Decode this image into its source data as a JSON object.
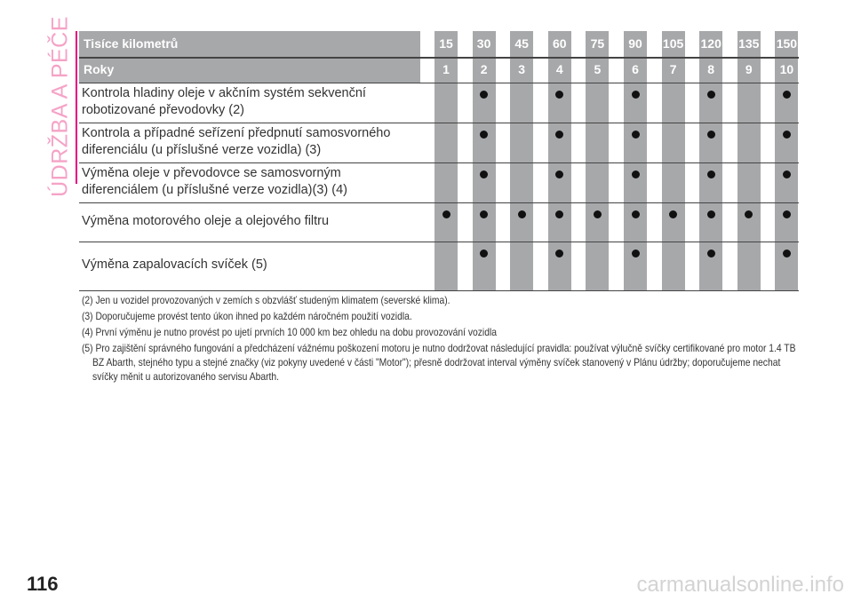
{
  "section_title": "ÚDRŽBA A PÉČE",
  "page_number": "116",
  "watermark": "carmanualsonline.info",
  "colors": {
    "accent_pink": "#e8007f",
    "header_gray": "#a7a8aa"
  },
  "table": {
    "header_km_label": "Tisíce kilometrů",
    "header_years_label": "Roky",
    "km": [
      "15",
      "30",
      "45",
      "60",
      "75",
      "90",
      "105",
      "120",
      "135",
      "150"
    ],
    "years": [
      "1",
      "2",
      "3",
      "4",
      "5",
      "6",
      "7",
      "8",
      "9",
      "10"
    ],
    "rows": [
      {
        "label": "Kontrola hladiny oleje v akčním systém sekvenční robotizované převodovky (2)",
        "marks": [
          false,
          true,
          false,
          true,
          false,
          true,
          false,
          true,
          false,
          true
        ]
      },
      {
        "label": "Kontrola a případné seřízení předpnutí samosvorného diferenciálu (u příslušné verze vozidla) (3)",
        "marks": [
          false,
          true,
          false,
          true,
          false,
          true,
          false,
          true,
          false,
          true
        ]
      },
      {
        "label": "Výměna oleje v převodovce se samosvorným diferenciálem (u příslušné verze vozidla)(3) (4)",
        "marks": [
          false,
          true,
          false,
          true,
          false,
          true,
          false,
          true,
          false,
          true
        ]
      },
      {
        "label": "Výměna motorového oleje a olejového filtru",
        "marks": [
          true,
          true,
          true,
          true,
          true,
          true,
          true,
          true,
          true,
          true
        ]
      },
      {
        "label": "Výměna zapalovacích svíček (5)",
        "marks": [
          false,
          true,
          false,
          true,
          false,
          true,
          false,
          true,
          false,
          true
        ]
      }
    ]
  },
  "footnotes": [
    "(2) Jen u vozidel provozovaných v zemích s obzvlášť studeným klimatem (severské klima).",
    "(3) Doporučujeme provést tento úkon ihned po každém náročném použití vozidla.",
    "(4) První výměnu je nutno provést po ujetí prvních 10 000 km bez ohledu na dobu provozování vozidla",
    "(5) Pro zajištění správného fungování a předcházení vážnému poškození motoru je nutno dodržovat následující pravidla: používat výlučně svíčky certifikované pro motor 1.4 TB BZ Abarth, stejného typu a stejné značky (viz pokyny uvedené v části \"Motor\"); přesně dodržovat interval výměny svíček stanovený v Plánu údržby; doporučujeme nechat svíčky měnit u autorizovaného servisu Abarth."
  ]
}
